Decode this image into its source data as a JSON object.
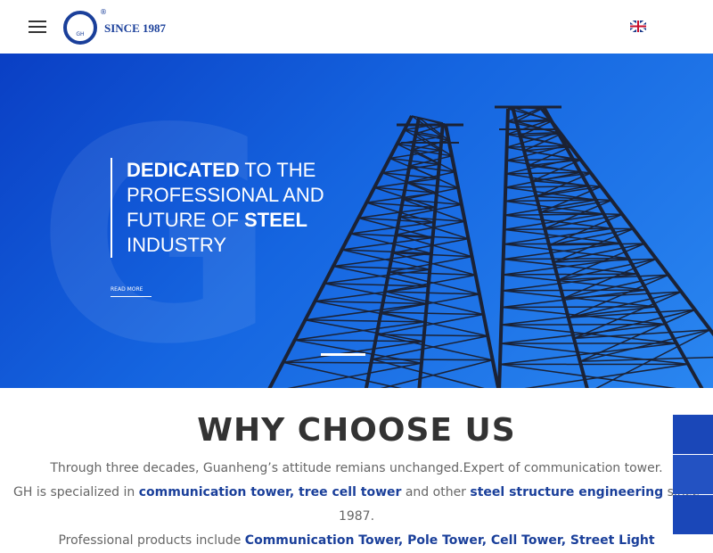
{
  "header": {
    "logo_text": "SINCE 1987",
    "logo_mark": "®",
    "logo_sub": "GH"
  },
  "hero": {
    "headline": [
      [
        {
          "text": "DEDICATED",
          "bold": true
        },
        {
          "text": " TO THE"
        }
      ],
      [
        {
          "text": "PROFESSIONAL AND"
        }
      ],
      [
        {
          "text": "FUTURE OF "
        },
        {
          "text": "STEEL",
          "bold": true
        }
      ],
      [
        {
          "text": "INDUSTRY"
        }
      ]
    ],
    "read_more": "READ MORE"
  },
  "section": {
    "title": "WHY CHOOSE US",
    "paragraphs": [
      [
        {
          "text": "Through three decades, Guanheng’s attitude remians unchanged.Expert of communication tower."
        }
      ],
      [
        {
          "text": "GH is specialized in "
        },
        {
          "text": "communication tower, tree cell tower",
          "link": true
        },
        {
          "text": " and other "
        },
        {
          "text": "steel structure engineering",
          "link": true
        },
        {
          "text": " since 1987."
        }
      ],
      [
        {
          "text": "Professional products include "
        },
        {
          "text": "Communication Tower, Pole Tower, Cell Tower, Street Light",
          "link": true
        }
      ]
    ]
  }
}
